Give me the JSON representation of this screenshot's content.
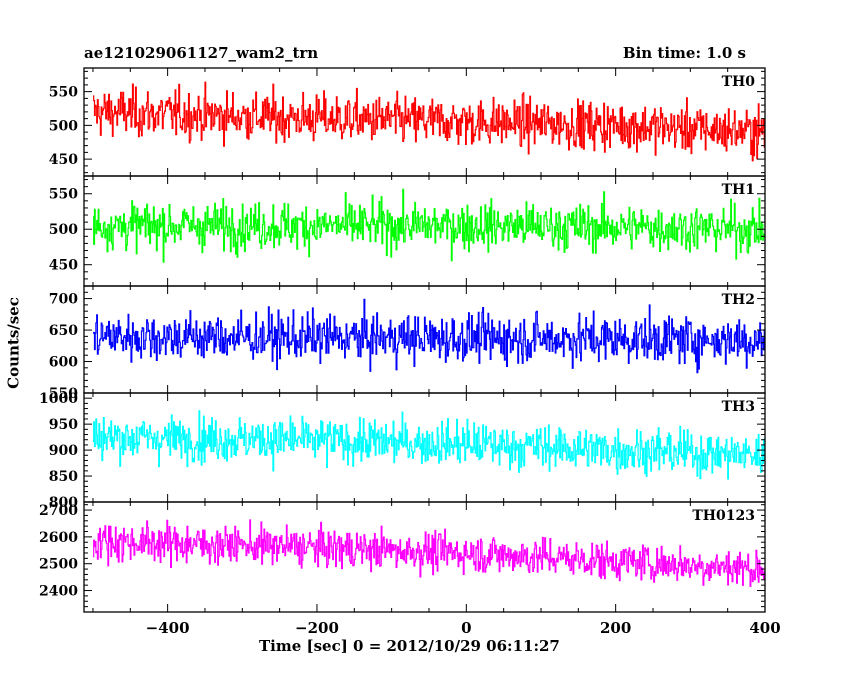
{
  "header": {
    "title": "ae121029061127_wam2_trn",
    "bin_time": "Bin time: 1.0 s"
  },
  "axes": {
    "xlabel": "Time [sec] 0 = 2012/10/29 06:11:27",
    "ylabel": "Counts/sec",
    "x_ticklabels": [
      "−400",
      "−200",
      "0",
      "200",
      "400"
    ]
  },
  "chart_data": {
    "type": "line",
    "x_range": [
      -512,
      400
    ],
    "x_ticks": [
      -400,
      -200,
      0,
      200,
      400
    ],
    "grid": false,
    "series": [
      {
        "name": "TH0",
        "color": "#ff0000",
        "ylim": [
          425,
          585
        ],
        "yticks": [
          450,
          500,
          550
        ],
        "trend": [
          [
            -500,
            520
          ],
          [
            -250,
            512
          ],
          [
            0,
            505
          ],
          [
            200,
            500
          ],
          [
            400,
            490
          ]
        ],
        "noise": 25
      },
      {
        "name": "TH1",
        "color": "#00ff00",
        "ylim": [
          420,
          575
        ],
        "yticks": [
          450,
          500,
          550
        ],
        "trend": [
          [
            -500,
            505
          ],
          [
            -250,
            505
          ],
          [
            0,
            505
          ],
          [
            200,
            503
          ],
          [
            400,
            500
          ]
        ],
        "noise": 23
      },
      {
        "name": "TH2",
        "color": "#0000ff",
        "ylim": [
          550,
          720
        ],
        "yticks": [
          550,
          600,
          650,
          700
        ],
        "trend": [
          [
            -500,
            640
          ],
          [
            -250,
            638
          ],
          [
            0,
            637
          ],
          [
            200,
            636
          ],
          [
            400,
            634
          ]
        ],
        "noise": 27
      },
      {
        "name": "TH3",
        "color": "#00ffff",
        "ylim": [
          800,
          1010
        ],
        "yticks": [
          800,
          850,
          900,
          950,
          1000
        ],
        "trend": [
          [
            -500,
            925
          ],
          [
            -250,
            920
          ],
          [
            0,
            912
          ],
          [
            200,
            900
          ],
          [
            400,
            890
          ]
        ],
        "noise": 30
      },
      {
        "name": "TH0123",
        "color": "#ff00ff",
        "ylim": [
          2320,
          2730
        ],
        "yticks": [
          2400,
          2500,
          2600,
          2700
        ],
        "trend": [
          [
            -500,
            2585
          ],
          [
            -250,
            2565
          ],
          [
            0,
            2540
          ],
          [
            200,
            2510
          ],
          [
            400,
            2480
          ]
        ],
        "noise": 50
      }
    ]
  }
}
